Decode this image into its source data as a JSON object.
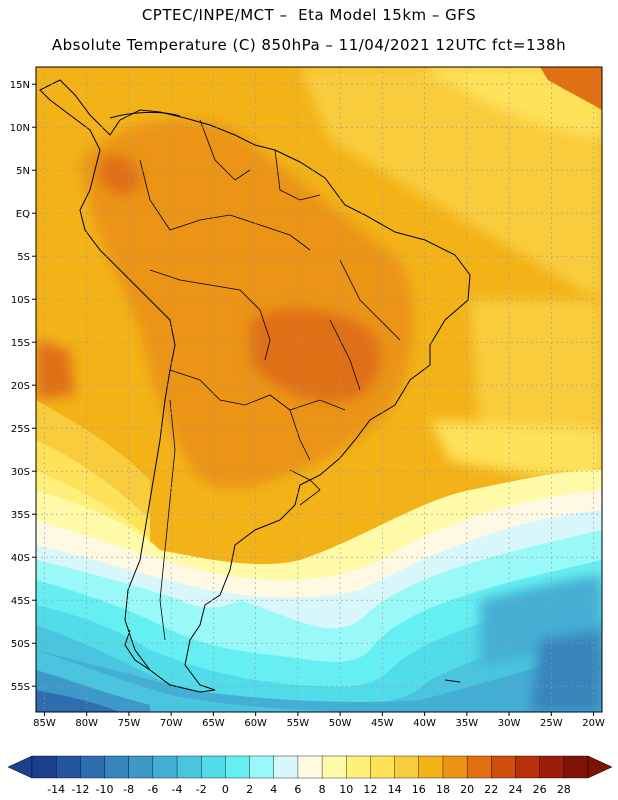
{
  "header": {
    "line1": "CPTEC/INPE/MCT –  Eta Model 15km – GFS",
    "line2": "Absolute Temperature (C) 850hPa – 11/04/2021 12UTC fct=138h"
  },
  "map": {
    "lat_labels": [
      "15N",
      "10N",
      "5N",
      "EQ",
      "5S",
      "10S",
      "15S",
      "20S",
      "25S",
      "30S",
      "35S",
      "40S",
      "45S",
      "50S",
      "55S"
    ],
    "lat_values": [
      15,
      10,
      5,
      0,
      -5,
      -10,
      -15,
      -20,
      -25,
      -30,
      -35,
      -40,
      -45,
      -50,
      -55
    ],
    "lon_labels": [
      "85W",
      "80W",
      "75W",
      "70W",
      "65W",
      "60W",
      "55W",
      "50W",
      "45W",
      "40W",
      "35W",
      "30W",
      "25W",
      "20W"
    ],
    "lon_values": [
      -85,
      -80,
      -75,
      -70,
      -65,
      -60,
      -55,
      -50,
      -45,
      -40,
      -35,
      -30,
      -25,
      -20
    ],
    "lat_range": [
      -58,
      17
    ],
    "lon_range": [
      -86,
      -19
    ],
    "grid": true
  },
  "colorbar": {
    "labels": [
      "-14",
      "-12",
      "-10",
      "-8",
      "-6",
      "-4",
      "-2",
      "0",
      "2",
      "4",
      "6",
      "8",
      "10",
      "12",
      "14",
      "16",
      "18",
      "20",
      "22",
      "24",
      "26",
      "28"
    ],
    "colors": [
      "#1c3f8e",
      "#25559f",
      "#2e6daf",
      "#3884bd",
      "#3d99c9",
      "#44afd4",
      "#4ac5df",
      "#52dbe9",
      "#66eff2",
      "#99f9f9",
      "#d8f7fb",
      "#fff8e3",
      "#fffaa8",
      "#fff07c",
      "#fee25a",
      "#f9cc3d",
      "#f3b318",
      "#eb9414",
      "#e07012",
      "#cf4e0f",
      "#b8300c",
      "#9d1c0a",
      "#7d1207"
    ]
  }
}
